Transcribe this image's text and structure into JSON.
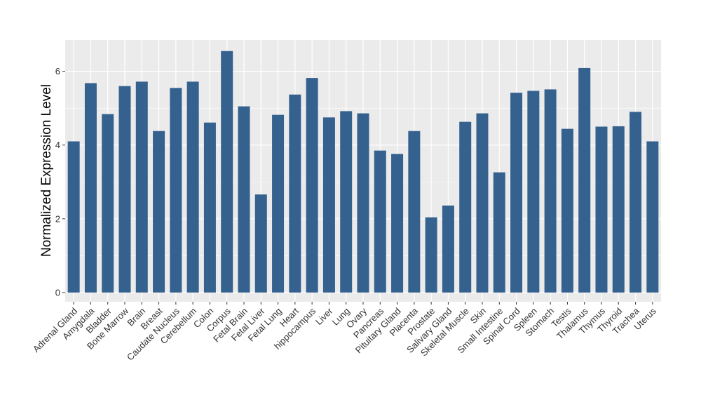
{
  "chart_data": {
    "type": "bar",
    "title": "",
    "xlabel": "",
    "ylabel": "Normalized Expression Level",
    "ylim": [
      -0.25,
      6.85
    ],
    "yticks": [
      0,
      2,
      4,
      6
    ],
    "grid": true,
    "bar_color": "#35618f",
    "panel_color": "#ebebeb",
    "categories": [
      "Adrenal Gland",
      "Amygdala",
      "Bladder",
      "Bone Marrow",
      "Brain",
      "Breast",
      "Caudate Nucleus",
      "Cerebellum",
      "Colon",
      "Corpus",
      "Fetal Brain",
      "Fetal Liver",
      "Fetal Lung",
      "Heart",
      "hippocampus",
      "Liver",
      "Lung",
      "Ovary",
      "Pancreas",
      "Pituitary Gland",
      "Placenta",
      "Prostate",
      "Salivary Gland",
      "Skeletal Muscle",
      "Skin",
      "Small Intestine",
      "Spinal Cord",
      "Spleen",
      "Stomach",
      "Testis",
      "Thalamus",
      "Thymus",
      "Thyroid",
      "Trachea",
      "Uterus"
    ],
    "values": [
      4.1,
      5.68,
      4.84,
      5.6,
      5.72,
      4.38,
      5.55,
      5.72,
      4.61,
      6.55,
      5.05,
      2.66,
      4.82,
      5.37,
      5.82,
      4.75,
      4.92,
      4.86,
      3.85,
      3.76,
      4.38,
      2.04,
      2.36,
      4.63,
      4.86,
      3.26,
      5.42,
      5.47,
      5.51,
      4.44,
      6.09,
      4.5,
      4.51,
      4.9,
      4.1
    ]
  }
}
